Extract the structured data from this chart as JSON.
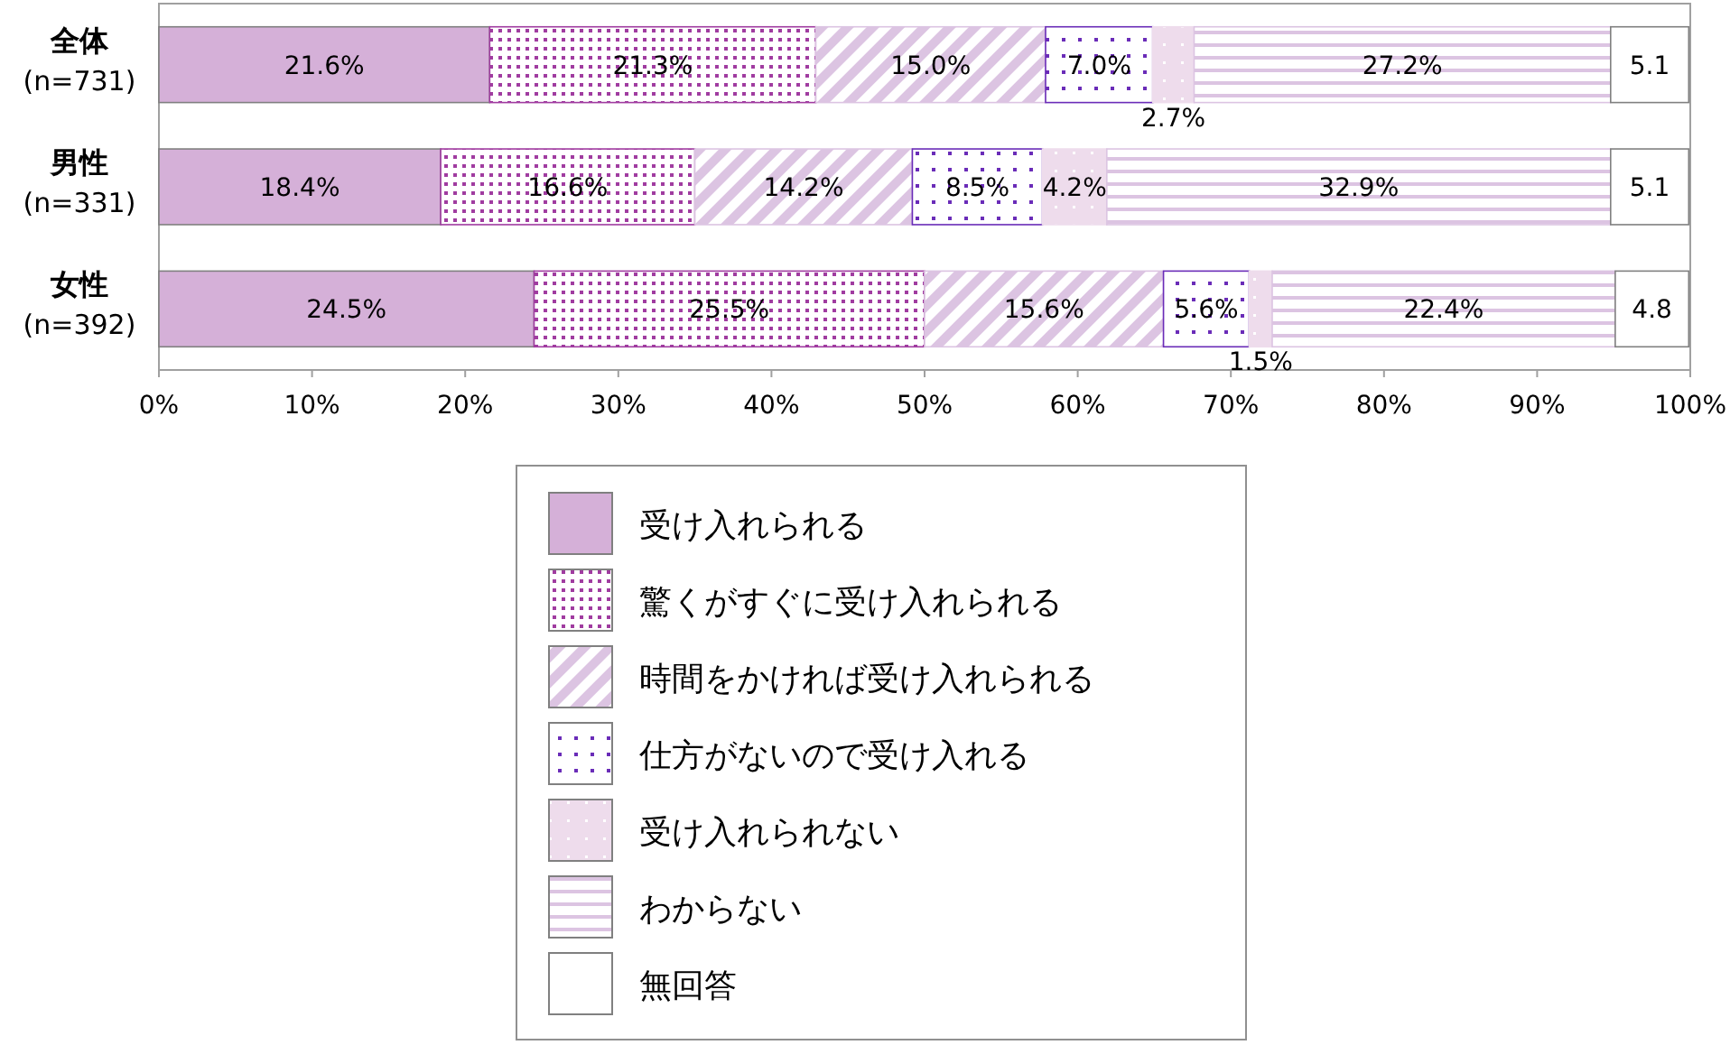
{
  "chart_data": {
    "type": "bar",
    "orientation": "horizontal",
    "stacked": true,
    "categories": [
      "全体\n(n=731)",
      "男性\n(n=331)",
      "女性\n(n=392)"
    ],
    "series": [
      {
        "name": "受け入れられる",
        "color": "#d5b0d8",
        "values": [
          21.6,
          18.4,
          24.5
        ],
        "value_labels": [
          "21.6%",
          "18.4%",
          "24.5%"
        ]
      },
      {
        "name": "驚くがすぐに受け入れられる",
        "color": "#a03ca0",
        "values": [
          21.3,
          16.6,
          25.5
        ],
        "value_labels": [
          "21.3%",
          "16.6%",
          "25.5%"
        ]
      },
      {
        "name": "時間をかければ受け入れられる",
        "color": "#dcc4e2",
        "values": [
          15.0,
          14.2,
          15.6
        ],
        "value_labels": [
          "15.0%",
          "14.2%",
          "15.6%"
        ]
      },
      {
        "name": "仕方がないので受け入れる",
        "color": "#6a2cb8",
        "values": [
          7.0,
          8.5,
          5.6
        ],
        "value_labels": [
          "7.0%",
          "8.5%",
          "5.6%"
        ]
      },
      {
        "name": "受け入れられない",
        "color": "#eedcec",
        "values": [
          2.7,
          4.2,
          1.5
        ],
        "value_labels": [
          "2.7%",
          "4.2%",
          "1.5%"
        ]
      },
      {
        "name": "わからない",
        "color": "#dcc4e2",
        "values": [
          27.2,
          32.9,
          22.4
        ],
        "value_labels": [
          "27.2%",
          "32.9%",
          "22.4%"
        ]
      },
      {
        "name": "無回答",
        "color": "#ffffff",
        "values": [
          5.1,
          5.1,
          4.8
        ],
        "value_labels": [
          "5.1",
          "5.1",
          "4.8"
        ]
      }
    ],
    "xlim": [
      0,
      100
    ],
    "xticks": [
      {
        "value": 0,
        "label": "0%"
      },
      {
        "value": 10,
        "label": "10%"
      },
      {
        "value": 20,
        "label": "20%"
      },
      {
        "value": 30,
        "label": "30%"
      },
      {
        "value": 40,
        "label": "40%"
      },
      {
        "value": 50,
        "label": "50%"
      },
      {
        "value": 60,
        "label": "60%"
      },
      {
        "value": 70,
        "label": "70%"
      },
      {
        "value": 80,
        "label": "80%"
      },
      {
        "value": 90,
        "label": "90%"
      },
      {
        "value": 100,
        "label": "100%"
      }
    ],
    "legend": "bottom"
  }
}
